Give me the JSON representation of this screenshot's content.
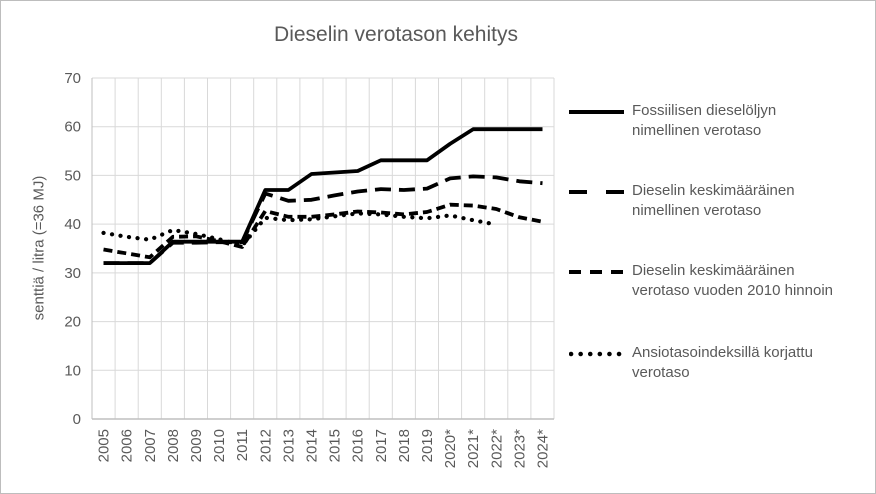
{
  "window": {
    "background": "#ffffff",
    "frame_border_color": "#bdbdbd"
  },
  "colors": {
    "text": "#595959",
    "gridline": "#d9d9d9",
    "axis_line": "#bfbfbf",
    "series_line": "#000000"
  },
  "chart_data": {
    "type": "line",
    "title": "Dieselin verotason kehitys",
    "xlabel": "",
    "ylabel": "senttiä / litra (=36 MJ)",
    "ylim": [
      0,
      70
    ],
    "ytick_step": 10,
    "ytick_labels": [
      "0",
      "10",
      "20",
      "30",
      "40",
      "50",
      "60",
      "70"
    ],
    "grid": true,
    "legend_position": "right",
    "categories": [
      "2005",
      "2006",
      "2007",
      "2008",
      "2009",
      "2010",
      "2011",
      "2012",
      "2013",
      "2014",
      "2015",
      "2016",
      "2017",
      "2018",
      "2019",
      "2020*",
      "2021*",
      "2022*",
      "2023*",
      "2024*"
    ],
    "series": [
      {
        "name": "Fossiilisen dieselöljyn nimellinen verotaso",
        "style": "solid",
        "values": [
          32,
          32,
          32,
          36.4,
          36.4,
          36.4,
          36.4,
          47,
          47,
          50.3,
          50.6,
          50.9,
          53.1,
          53.1,
          53.1,
          56.5,
          59.5,
          59.5,
          59.5,
          59.5
        ]
      },
      {
        "name": "Dieselin keskimääräinen nimellinen verotaso",
        "style": "long-dash",
        "values": [
          32,
          32,
          32,
          36.2,
          36.2,
          36.3,
          36.3,
          46.3,
          44.8,
          45.0,
          45.9,
          46.7,
          47.2,
          47.0,
          47.3,
          49.4,
          49.8,
          49.6,
          48.8,
          48.4
        ]
      },
      {
        "name": "Dieselin keskimääräinen verotaso vuoden 2010 hinnoin",
        "style": "dash",
        "values": [
          34.8,
          34.0,
          33.2,
          37.4,
          37.5,
          36.5,
          35.3,
          42.7,
          41.5,
          41.5,
          42.0,
          42.6,
          42.4,
          42.0,
          42.5,
          44.0,
          43.8,
          43.1,
          41.4,
          40.5
        ]
      },
      {
        "name": "Ansiotasoindeksillä korjattu verotaso",
        "style": "dotted",
        "values": [
          38.2,
          37.4,
          36.8,
          38.8,
          38.0,
          36.9,
          35.6,
          41.3,
          40.8,
          41.0,
          41.6,
          42.2,
          42.0,
          41.5,
          41.2,
          41.8,
          40.8,
          39.9,
          null,
          null
        ]
      }
    ]
  }
}
